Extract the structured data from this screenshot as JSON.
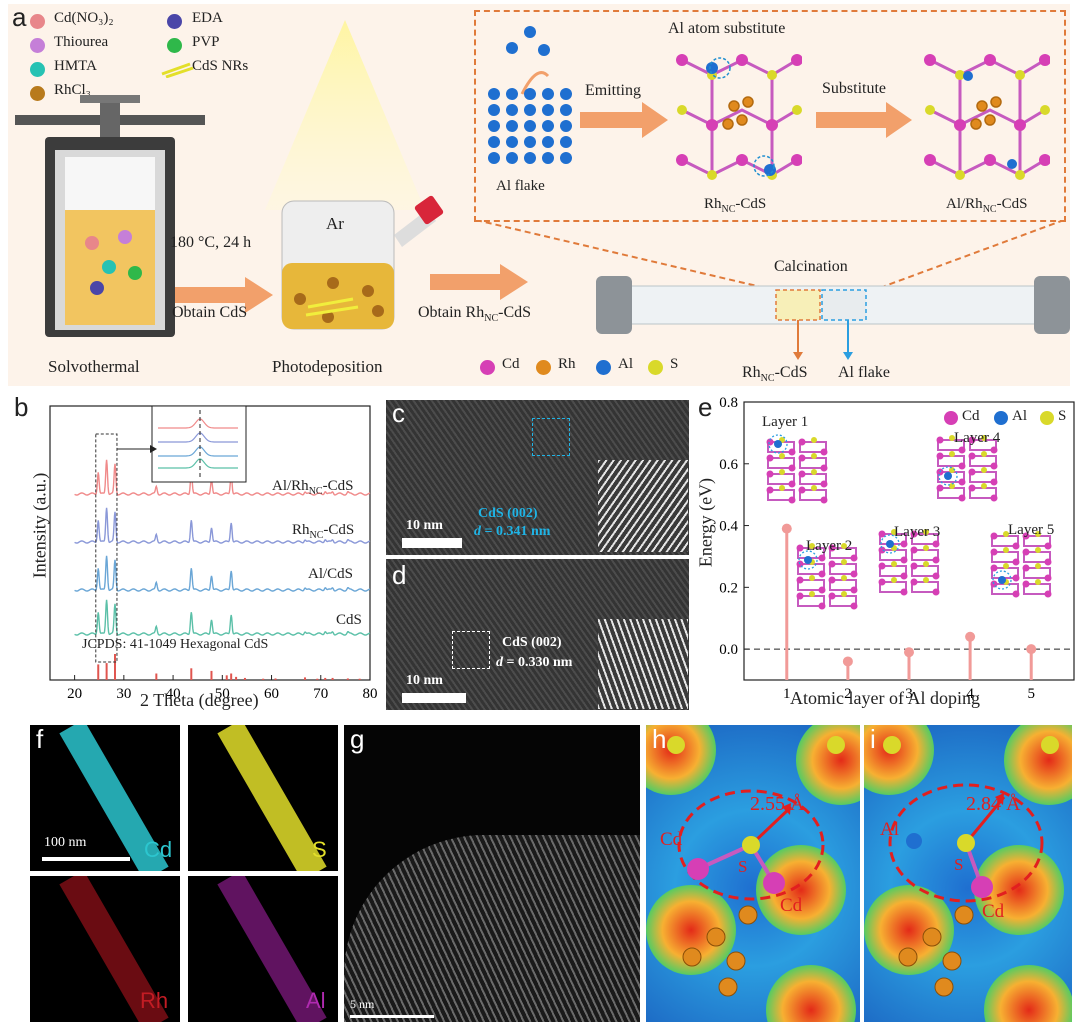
{
  "panel_a": {
    "label": "a",
    "legend_left": [
      "Cd(NO₃)₂",
      "Thiourea",
      "HMTA",
      "RhCl₃"
    ],
    "legend_right": [
      "EDA",
      "PVP",
      "CdS NRs"
    ],
    "step1_conditions": "180 °C, 24 h",
    "step1_result": "Obtain CdS",
    "step1_name": "Solvothermal",
    "step2_gas": "Ar",
    "step2_name": "Photodeposition",
    "step2_result": "Obtain Rh",
    "step2_result_sub": "NC",
    "step2_result_tail": "-CdS",
    "calcination": "Calcination",
    "tube_left": "Rh",
    "tube_left_sub": "NC",
    "tube_left_tail": "-CdS",
    "tube_right": "Al flake",
    "inset_title": "Al atom substitute",
    "al_flake": "Al flake",
    "emitting": "Emitting",
    "substitute": "Substitute",
    "rhnc_cds": "Rh",
    "rhnc_cds_sub": "NC",
    "rhnc_cds_tail": "-CdS",
    "al_rhnc_cds": "Al/Rh",
    "al_rhnc_cds_sub": "NC",
    "al_rhnc_cds_tail": "-CdS",
    "atom_legend": [
      "Cd",
      "Rh",
      "Al",
      "S"
    ],
    "colors": {
      "Cd": "#d63fb5",
      "Rh": "#e08a1e",
      "Al": "#1f6fd0",
      "S": "#d9d92a",
      "HMTA": "#27c2b3",
      "EDA": "#4a46a8",
      "PVP": "#2fb84a",
      "Thiourea": "#c57fd8",
      "CdNO3": "#e8868a",
      "arrow": "#f2a06b"
    }
  },
  "panel_b": {
    "label": "b",
    "ylabel": "Intensity (a.u.)",
    "xlabel": "2 Theta (degree)",
    "series_labels": [
      {
        "main": "Al/Rh",
        "sub": "NC",
        "tail": "-CdS",
        "color": "#f08a8a"
      },
      {
        "main": "Rh",
        "sub": "NC",
        "tail": "-CdS",
        "color": "#8a98d8"
      },
      {
        "main": "Al/CdS",
        "sub": "",
        "tail": "",
        "color": "#6aa6d6"
      },
      {
        "main": "CdS",
        "sub": "",
        "tail": "",
        "color": "#5bc0a8"
      }
    ],
    "reference": "JCPDS: 41-1049 Hexagonal CdS"
  },
  "panel_c": {
    "label": "c",
    "scale": "10 nm",
    "phase": "CdS (002)",
    "d_label": "d",
    "d_value": "= 0.341 nm"
  },
  "panel_d": {
    "label": "d",
    "scale": "10 nm",
    "phase": "CdS (002)",
    "d_label": "d",
    "d_value": "= 0.330 nm"
  },
  "panel_e": {
    "label": "e",
    "legend": [
      "Cd",
      "Al",
      "S"
    ],
    "layers": [
      "Layer 1",
      "Layer 2",
      "Layer 3",
      "Layer 4",
      "Layer 5"
    ]
  },
  "panel_f": {
    "label": "f",
    "scale": "100 nm",
    "elements": [
      "Cd",
      "S",
      "Rh",
      "Al"
    ]
  },
  "panel_g": {
    "label": "g",
    "scale": "5 nm"
  },
  "panel_h": {
    "label": "h",
    "distance": "2.55 Å",
    "atoms": [
      "Cd",
      "S",
      "Cd"
    ]
  },
  "panel_i": {
    "label": "i",
    "distance": "2.84 Å",
    "atoms": [
      "Al",
      "S",
      "Cd"
    ]
  },
  "chart_data": [
    {
      "type": "line",
      "title": "",
      "xlabel": "2 Theta (degree)",
      "ylabel": "Intensity (a.u.)",
      "xlim": [
        15,
        80
      ],
      "x_ticks": [
        20,
        30,
        40,
        50,
        60,
        70,
        80
      ],
      "peaks_x": [
        24.8,
        26.5,
        28.2,
        36.6,
        43.7,
        47.8,
        51.8,
        66.8,
        70.9,
        72.4,
        75.5
      ],
      "series": [
        {
          "name": "Al/Rhₙᴄ-CdS",
          "peak_heights": [
            0.45,
            0.7,
            0.6,
            0.15,
            0.45,
            0.3,
            0.4,
            0.05,
            0.06,
            0.05,
            0.04
          ]
        },
        {
          "name": "Rhₙᴄ-CdS",
          "peak_heights": [
            0.45,
            0.7,
            0.6,
            0.15,
            0.45,
            0.3,
            0.4,
            0.05,
            0.06,
            0.05,
            0.04
          ]
        },
        {
          "name": "Al/CdS",
          "peak_heights": [
            0.45,
            0.7,
            0.6,
            0.15,
            0.45,
            0.3,
            0.4,
            0.05,
            0.06,
            0.05,
            0.04
          ]
        },
        {
          "name": "CdS",
          "peak_heights": [
            0.45,
            0.7,
            0.6,
            0.15,
            0.45,
            0.3,
            0.4,
            0.05,
            0.06,
            0.05,
            0.04
          ]
        }
      ],
      "reference_bars": {
        "x": [
          24.8,
          26.5,
          28.2,
          36.6,
          43.7,
          47.8,
          50.9,
          51.8,
          52.8,
          54.6,
          58.3,
          60.8,
          66.8,
          69.3,
          70.9,
          72.4,
          75.5,
          77.9
        ],
        "height": [
          0.6,
          0.65,
          1.0,
          0.25,
          0.45,
          0.35,
          0.18,
          0.25,
          0.12,
          0.08,
          0.05,
          0.06,
          0.1,
          0.05,
          0.08,
          0.08,
          0.06,
          0.05
        ]
      }
    },
    {
      "type": "scatter",
      "title": "",
      "xlabel": "Atomic layer of Al doping",
      "ylabel": "Energy (eV)",
      "xlim": [
        0.3,
        5.7
      ],
      "ylim": [
        -0.1,
        0.8
      ],
      "x_ticks": [
        1,
        2,
        3,
        4,
        5
      ],
      "y_ticks": [
        0.0,
        0.2,
        0.4,
        0.6,
        0.8
      ],
      "x": [
        1,
        2,
        3,
        4,
        5
      ],
      "y": [
        0.39,
        -0.04,
        -0.01,
        0.04,
        0.0
      ],
      "reference_line": 0.0
    }
  ]
}
